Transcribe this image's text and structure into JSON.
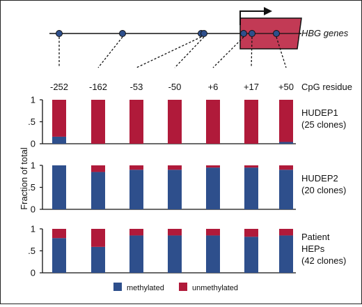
{
  "gene_label": "HBG genes",
  "cpg_axis_label": "CpG residue",
  "y_axis_label": "Fraction of total",
  "colors": {
    "methylated": "#2e4f8c",
    "unmethylated": "#b01a3a",
    "gene_box": "#c23a55",
    "cpg_dot": "#2e4f8c"
  },
  "legend": {
    "methylated": "methylated",
    "unmethylated": "unmethylated"
  },
  "chart_data": {
    "type": "bar",
    "stacked": true,
    "categories": [
      "-252",
      "-162",
      "-53",
      "-50",
      "+6",
      "+17",
      "+50"
    ],
    "yticks": [
      "0",
      ".5",
      "1"
    ],
    "ylim": [
      0,
      1
    ],
    "legend_position": "bottom",
    "panels": [
      {
        "label_lines": [
          "HUDEP1",
          "(25 clones)"
        ],
        "series": [
          {
            "name": "methylated",
            "values": [
              0.16,
              0.0,
              0.0,
              0.0,
              0.0,
              0.0,
              0.04
            ]
          },
          {
            "name": "unmethylated",
            "values": [
              0.84,
              1.0,
              1.0,
              1.0,
              1.0,
              1.0,
              0.96
            ]
          }
        ]
      },
      {
        "label_lines": [
          "HUDEP2",
          "(20 clones)"
        ],
        "series": [
          {
            "name": "methylated",
            "values": [
              1.0,
              0.85,
              0.9,
              0.9,
              0.95,
              0.95,
              0.9
            ]
          },
          {
            "name": "unmethylated",
            "values": [
              0.0,
              0.15,
              0.1,
              0.1,
              0.05,
              0.05,
              0.1
            ]
          }
        ]
      },
      {
        "label_lines": [
          "Patient",
          "HEPs",
          "(42 clones)"
        ],
        "series": [
          {
            "name": "methylated",
            "values": [
              0.79,
              0.59,
              0.85,
              0.85,
              0.85,
              0.82,
              0.85
            ]
          },
          {
            "name": "unmethylated",
            "values": [
              0.21,
              0.41,
              0.15,
              0.15,
              0.15,
              0.18,
              0.15
            ]
          }
        ]
      }
    ]
  }
}
